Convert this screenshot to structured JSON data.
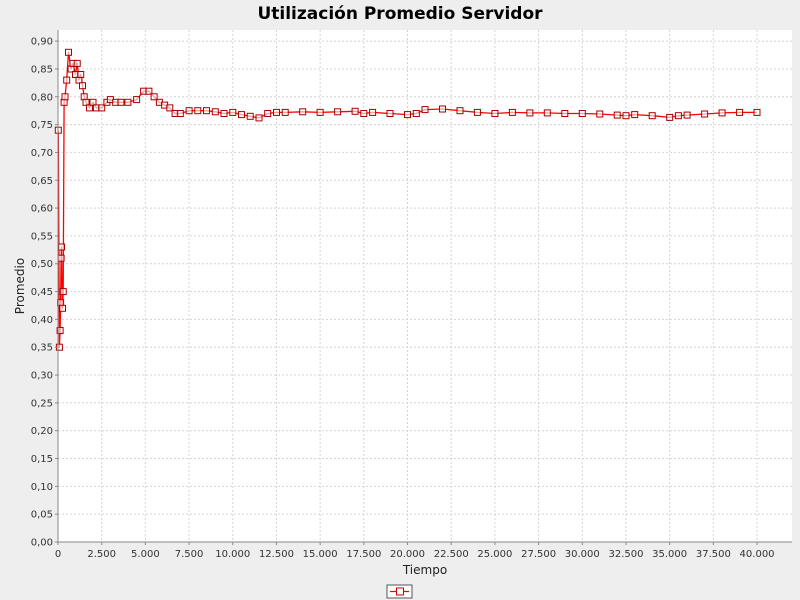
{
  "colors": {
    "background": "#eeeeee",
    "plot_background": "#ffffff",
    "gridline": "#d4d4d4",
    "series": "#ff0000",
    "marker_edge": "#aa0000"
  },
  "chart_data": {
    "type": "line",
    "title": "Utilización Promedio Servidor",
    "xlabel": "Tiempo",
    "ylabel": "Promedio",
    "xlim": [
      0,
      42000
    ],
    "ylim": [
      0,
      0.92
    ],
    "grid": true,
    "legend_placement": "bottom-center",
    "x_ticks": [
      0,
      2500,
      5000,
      7500,
      10000,
      12500,
      15000,
      17500,
      20000,
      22500,
      25000,
      27500,
      30000,
      32500,
      35000,
      37500,
      40000
    ],
    "x_tick_labels": [
      "0",
      "2.500",
      "5.000",
      "7.500",
      "10.000",
      "12.500",
      "15.000",
      "17.500",
      "20.000",
      "22.500",
      "25.000",
      "27.500",
      "30.000",
      "32.500",
      "35.000",
      "37.500",
      "40.000"
    ],
    "y_ticks": [
      0,
      0.05,
      0.1,
      0.15,
      0.2,
      0.25,
      0.3,
      0.35,
      0.4,
      0.45,
      0.5,
      0.55,
      0.6,
      0.65,
      0.7,
      0.75,
      0.8,
      0.85,
      0.9
    ],
    "y_tick_labels": [
      "0,00",
      "0,05",
      "0,10",
      "0,15",
      "0,20",
      "0,25",
      "0,30",
      "0,35",
      "0,40",
      "0,45",
      "0,50",
      "0,55",
      "0,60",
      "0,65",
      "0,70",
      "0,75",
      "0,80",
      "0,85",
      "0,90"
    ],
    "series": [
      {
        "name": "",
        "x": [
          20,
          80,
          120,
          150,
          180,
          200,
          260,
          300,
          350,
          400,
          500,
          600,
          750,
          850,
          1000,
          1100,
          1200,
          1300,
          1400,
          1500,
          1600,
          1800,
          2000,
          2200,
          2500,
          2800,
          3000,
          3300,
          3600,
          4000,
          4500,
          4900,
          5200,
          5500,
          5800,
          6100,
          6400,
          6700,
          7000,
          7500,
          8000,
          8500,
          9000,
          9500,
          10000,
          10500,
          11000,
          11500,
          12000,
          12500,
          13000,
          14000,
          15000,
          16000,
          17000,
          17500,
          18000,
          19000,
          20000,
          20500,
          21000,
          22000,
          23000,
          24000,
          25000,
          26000,
          27000,
          28000,
          29000,
          30000,
          31000,
          32000,
          32500,
          33000,
          34000,
          35000,
          35500,
          36000,
          37000,
          38000,
          39000,
          40000
        ],
        "y": [
          0.74,
          0.35,
          0.38,
          0.43,
          0.51,
          0.53,
          0.42,
          0.45,
          0.79,
          0.8,
          0.83,
          0.88,
          0.85,
          0.86,
          0.84,
          0.86,
          0.83,
          0.84,
          0.82,
          0.8,
          0.79,
          0.78,
          0.79,
          0.78,
          0.78,
          0.79,
          0.795,
          0.79,
          0.79,
          0.79,
          0.795,
          0.81,
          0.81,
          0.8,
          0.79,
          0.785,
          0.78,
          0.77,
          0.77,
          0.775,
          0.775,
          0.775,
          0.773,
          0.77,
          0.772,
          0.768,
          0.765,
          0.762,
          0.77,
          0.772,
          0.772,
          0.773,
          0.772,
          0.773,
          0.774,
          0.77,
          0.772,
          0.77,
          0.768,
          0.77,
          0.777,
          0.778,
          0.775,
          0.772,
          0.77,
          0.772,
          0.771,
          0.771,
          0.77,
          0.77,
          0.769,
          0.767,
          0.766,
          0.768,
          0.766,
          0.763,
          0.766,
          0.767,
          0.769,
          0.771,
          0.772,
          0.772
        ]
      }
    ]
  }
}
